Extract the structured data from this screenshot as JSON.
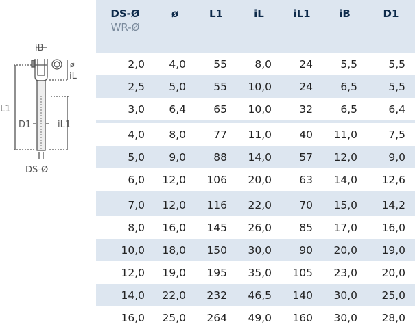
{
  "drawing": {
    "labels": {
      "iB": "iB",
      "o": "ø",
      "iL": "iL",
      "L1": "L1",
      "D1": "D1",
      "iL1": "iL1",
      "DS": "DS-Ø"
    }
  },
  "table": {
    "headers": [
      {
        "label": "DS-Ø",
        "sub": "WR-Ø"
      },
      {
        "label": "ø"
      },
      {
        "label": "L1"
      },
      {
        "label": "iL"
      },
      {
        "label": "iL1"
      },
      {
        "label": "iB"
      },
      {
        "label": "D1"
      }
    ],
    "rows": [
      [
        "2,0",
        "4,0",
        "55",
        "8,0",
        "24",
        "5,5",
        "5,5"
      ],
      [
        "2,5",
        "5,0",
        "55",
        "10,0",
        "24",
        "6,5",
        "5,5"
      ],
      [
        "3,0",
        "6,4",
        "65",
        "10,0",
        "32",
        "6,5",
        "6,4"
      ],
      [
        "4,0",
        "8,0",
        "77",
        "11,0",
        "40",
        "11,0",
        "7,5"
      ],
      [
        "5,0",
        "9,0",
        "88",
        "14,0",
        "57",
        "12,0",
        "9,0"
      ],
      [
        "6,0",
        "12,0",
        "106",
        "20,0",
        "63",
        "14,0",
        "12,6"
      ],
      [
        "7,0",
        "12,0",
        "116",
        "22,0",
        "70",
        "15,0",
        "14,2"
      ],
      [
        "8,0",
        "16,0",
        "145",
        "26,0",
        "85",
        "17,0",
        "16,0"
      ],
      [
        "10,0",
        "18,0",
        "150",
        "30,0",
        "90",
        "20,0",
        "19,0"
      ],
      [
        "12,0",
        "19,0",
        "195",
        "35,0",
        "105",
        "23,0",
        "20,0"
      ],
      [
        "14,0",
        "22,0",
        "232",
        "46,5",
        "140",
        "30,0",
        "25,0"
      ],
      [
        "16,0",
        "25,0",
        "264",
        "49,0",
        "160",
        "30,0",
        "28,0"
      ]
    ]
  },
  "colors": {
    "header_bg": "#dde6f0",
    "header_text": "#0d2a4a",
    "sub_text": "#7a8a9c"
  }
}
